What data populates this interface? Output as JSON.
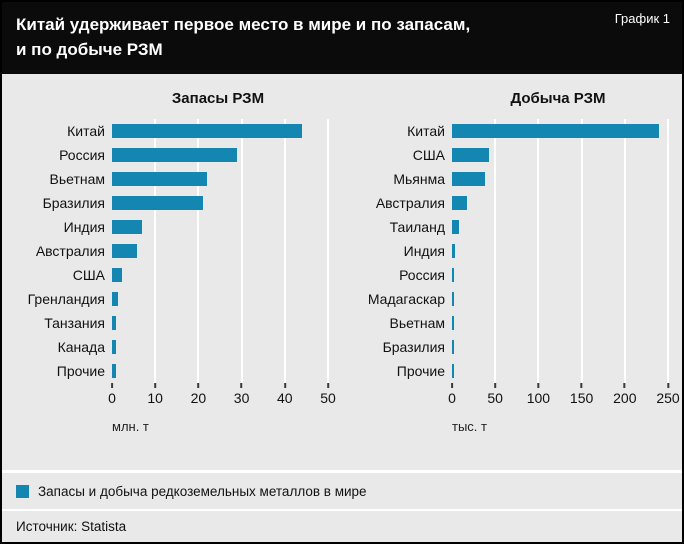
{
  "header": {
    "title_line1": "Китай удерживает первое место в мире и по запасам,",
    "title_line2": "и по добыче РЗМ",
    "figure_label": "График 1"
  },
  "colors": {
    "bar": "#1486b2",
    "background": "#e9e9e9",
    "header_background": "#0b0b0b"
  },
  "legend": {
    "label": "Запасы и добыча редкоземельных металлов в мире"
  },
  "source": {
    "label": "Источник: Statista"
  },
  "chart_data": [
    {
      "type": "bar",
      "orientation": "horizontal",
      "title": "Запасы РЗМ",
      "unit_label": "млн. т",
      "xlim": [
        0,
        50
      ],
      "ticks": [
        0,
        10,
        20,
        30,
        40,
        50
      ],
      "grid": true,
      "categories": [
        "Китай",
        "Россия",
        "Вьетнам",
        "Бразилия",
        "Индия",
        "Австралия",
        "США",
        "Гренландия",
        "Танзания",
        "Канада",
        "Прочие"
      ],
      "values": [
        44,
        29,
        22,
        21,
        6.9,
        5.7,
        2.2,
        1.5,
        0.9,
        0.9,
        0.9
      ]
    },
    {
      "type": "bar",
      "orientation": "horizontal",
      "title": "Добыча РЗМ",
      "unit_label": "тыс. т",
      "xlim": [
        0,
        250
      ],
      "ticks": [
        0,
        50,
        100,
        150,
        200,
        250
      ],
      "grid": true,
      "categories": [
        "Китай",
        "США",
        "Мьянма",
        "Австралия",
        "Таиланд",
        "Индия",
        "Россия",
        "Мадагаскар",
        "Вьетнам",
        "Бразилия",
        "Прочие"
      ],
      "values": [
        240,
        43,
        38,
        17,
        8,
        3,
        2.7,
        2,
        1.5,
        1.2,
        1.2
      ]
    }
  ]
}
